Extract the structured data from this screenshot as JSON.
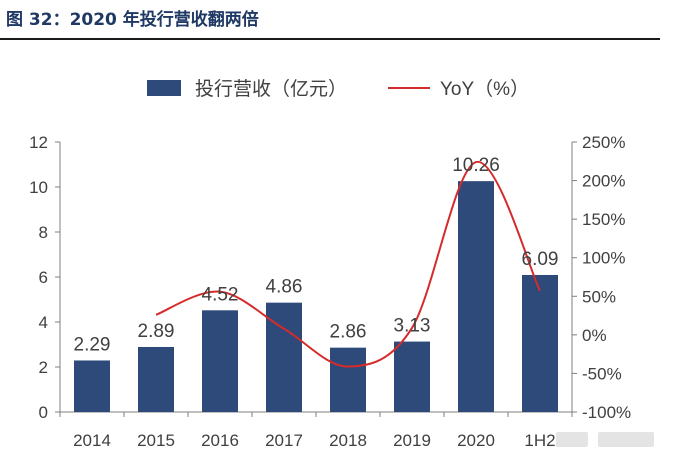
{
  "figure": {
    "title": "图 32：2020 年投行营收翻两倍"
  },
  "chart_data": {
    "type": "bar",
    "categories": [
      "2014",
      "2015",
      "2016",
      "2017",
      "2018",
      "2019",
      "2020",
      "1H2"
    ],
    "series": [
      {
        "name": "投行营收（亿元）",
        "type": "bar",
        "axis": "left",
        "color": "#2e4a7a",
        "values": [
          2.29,
          2.89,
          4.52,
          4.86,
          2.86,
          3.13,
          10.26,
          6.09
        ],
        "labels": [
          "2.29",
          "2.89",
          "4.52",
          "4.86",
          "2.86",
          "3.13",
          "10.26",
          "6.09"
        ]
      },
      {
        "name": "YoY（%）",
        "type": "line",
        "axis": "right",
        "color": "#d62b2b",
        "values": [
          null,
          26,
          56,
          8,
          -41,
          9,
          224,
          57
        ]
      }
    ],
    "yleft": {
      "ylim": [
        0,
        12
      ],
      "ticks": [
        "0",
        "2",
        "4",
        "6",
        "8",
        "10",
        "12"
      ]
    },
    "yright": {
      "ylim": [
        -100,
        250
      ],
      "ticks": [
        "-100%",
        "-50%",
        "0%",
        "50%",
        "100%",
        "150%",
        "200%",
        "250%"
      ]
    },
    "legend": "top",
    "grid": false
  }
}
